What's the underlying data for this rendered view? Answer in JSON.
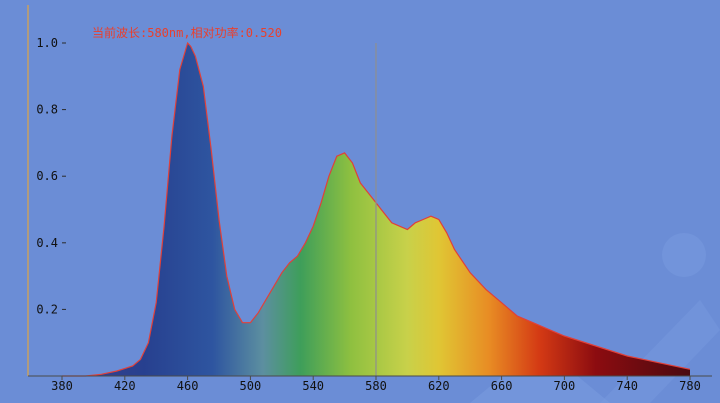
{
  "readout": {
    "text": "当前波长:580nm,相对功率:0.520"
  },
  "colors": {
    "plot_background": "#6b8dd6",
    "curve_outline": "#e0403a",
    "readout_text": "#e8402e",
    "cursor_line": "#8f8f8f",
    "axis_line": "#c8a060"
  },
  "chart_data": {
    "type": "area",
    "title": "",
    "xlabel": "",
    "ylabel": "",
    "xlim": [
      380,
      780
    ],
    "ylim": [
      0,
      1.0
    ],
    "x_ticks": [
      380,
      420,
      460,
      500,
      540,
      580,
      620,
      660,
      700,
      740,
      780
    ],
    "y_ticks": [
      0.2,
      0.4,
      0.6,
      0.8,
      1.0
    ],
    "y_tick_labels": [
      "0.2",
      "0.4",
      "0.6",
      "0.8",
      "1.0"
    ],
    "grid": false,
    "fill": "wavelength-spectrum-gradient",
    "cursor": {
      "wavelength": 580,
      "relative_power": 0.52
    },
    "series": [
      {
        "x": [
          380,
          395,
          405,
          415,
          425,
          430,
          435,
          440,
          445,
          450,
          455,
          460,
          462,
          465,
          470,
          475,
          480,
          485,
          490,
          495,
          500,
          505,
          510,
          515,
          520,
          525,
          530,
          535,
          540,
          545,
          550,
          555,
          560,
          565,
          570,
          575,
          580,
          585,
          590,
          595,
          600,
          605,
          610,
          615,
          620,
          625,
          630,
          640,
          650,
          660,
          670,
          680,
          690,
          700,
          720,
          740,
          760,
          780
        ],
        "y": [
          0.0,
          0.0,
          0.005,
          0.015,
          0.03,
          0.05,
          0.1,
          0.22,
          0.45,
          0.72,
          0.92,
          1.0,
          0.99,
          0.96,
          0.87,
          0.68,
          0.47,
          0.3,
          0.2,
          0.16,
          0.16,
          0.19,
          0.23,
          0.27,
          0.31,
          0.34,
          0.36,
          0.4,
          0.45,
          0.52,
          0.6,
          0.66,
          0.67,
          0.64,
          0.58,
          0.55,
          0.52,
          0.49,
          0.46,
          0.45,
          0.44,
          0.46,
          0.47,
          0.48,
          0.47,
          0.43,
          0.38,
          0.31,
          0.26,
          0.22,
          0.18,
          0.16,
          0.14,
          0.12,
          0.09,
          0.06,
          0.04,
          0.02
        ]
      }
    ]
  }
}
